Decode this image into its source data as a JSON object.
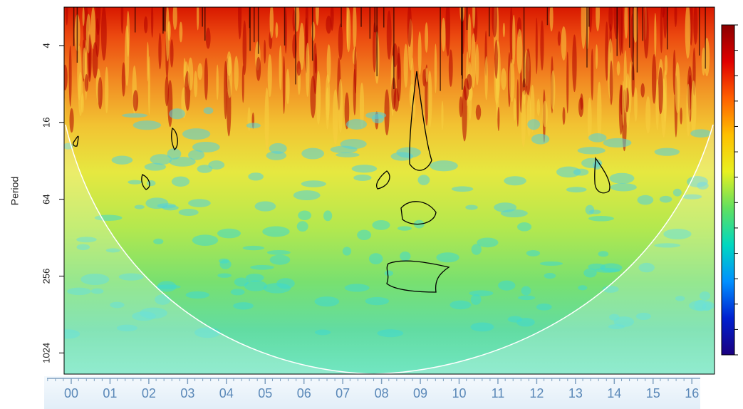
{
  "chart_data": {
    "type": "wavelet",
    "y_label": "Period",
    "ylim": [
      2,
      1500
    ],
    "log_y": true,
    "yticks": [
      4,
      16,
      64,
      256,
      1024
    ],
    "xlim": [
      -0.2,
      16.5
    ],
    "xticks": [
      {
        "value": 0,
        "label": "00"
      },
      {
        "value": 1,
        "label": "01"
      },
      {
        "value": 2,
        "label": "02"
      },
      {
        "value": 3,
        "label": "03"
      },
      {
        "value": 4,
        "label": "04"
      },
      {
        "value": 5,
        "label": "05"
      },
      {
        "value": 6,
        "label": "06"
      },
      {
        "value": 7,
        "label": "07"
      },
      {
        "value": 8,
        "label": "08"
      },
      {
        "value": 9,
        "label": "09"
      },
      {
        "value": 10,
        "label": "10"
      },
      {
        "value": 11,
        "label": "11"
      },
      {
        "value": 12,
        "label": "12"
      },
      {
        "value": 13,
        "label": "13"
      },
      {
        "value": 14,
        "label": "14"
      },
      {
        "value": 15,
        "label": "15"
      },
      {
        "value": 16,
        "label": "16"
      }
    ],
    "colormap": [
      "#8b0000",
      "#e00000",
      "#ff6000",
      "#ffc000",
      "#e8f020",
      "#60e060",
      "#00d8c0",
      "#0090ff",
      "#0020d0",
      "#1a0080"
    ]
  }
}
